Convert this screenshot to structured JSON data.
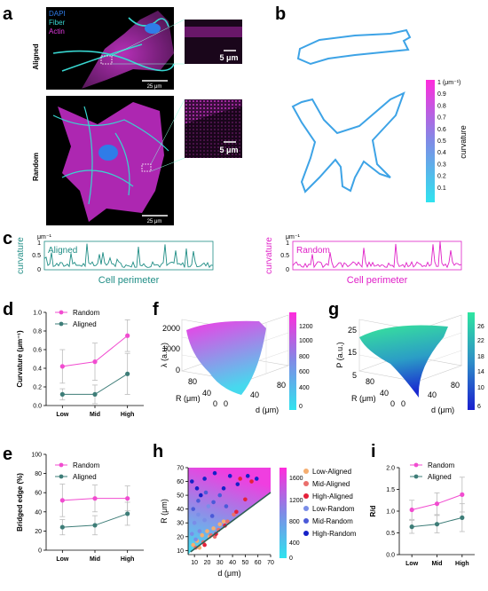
{
  "panels": {
    "a": "a",
    "b": "b",
    "c": "c",
    "d": "d",
    "e": "e",
    "f": "f",
    "g": "g",
    "h": "h",
    "i": "i"
  },
  "panel_a": {
    "row_aligned": "Aligned",
    "row_random": "Random",
    "legend": [
      "DAPI",
      "Fiber",
      "Actin"
    ],
    "legend_colors": [
      "#2f7ce8",
      "#38d6d0",
      "#e23be0"
    ],
    "scale_main_top": "25 μm",
    "scale_inset_top": "5 μm",
    "scale_main_bottom": "25 μm",
    "scale_inset_bottom": "5 μm"
  },
  "panel_b": {
    "colorbar_label": "curvature",
    "colorbar_ticks": [
      "1 (μm⁻¹)",
      "0.9",
      "0.8",
      "0.7",
      "0.6",
      "0.5",
      "0.4",
      "0.3",
      "0.2",
      "0.1"
    ]
  },
  "panel_c": {
    "ylabel": "curvature",
    "unit": "μm⁻¹",
    "yticks": [
      "0",
      "0.5",
      "1"
    ],
    "xlabel": "Cell perimeter",
    "left_title": "Aligned",
    "right_title": "Random",
    "left_color": "#1f8d85",
    "right_color": "#e020c8"
  },
  "panel_f": {
    "zlabel": "λ (a.u.)",
    "xlabel": "d (μm)",
    "ylabel": "R (μm)",
    "zticks": [
      "2000",
      "1000",
      "0"
    ],
    "rticks": [
      "80",
      "40",
      "0"
    ],
    "dticks": [
      "0",
      "40",
      "80"
    ],
    "cbar_ticks": [
      "1200",
      "1000",
      "800",
      "600",
      "400",
      "0"
    ]
  },
  "panel_g": {
    "zlabel": "P (a.u.)",
    "xlabel": "d (μm)",
    "ylabel": "R (μm)",
    "zticks": [
      "25",
      "15",
      "5"
    ],
    "rticks": [
      "80",
      "40",
      "0"
    ],
    "dticks": [
      "0",
      "40",
      "80"
    ],
    "cbar_ticks": [
      "26",
      "22",
      "18",
      "14",
      "10",
      "6"
    ]
  },
  "chart_data": [
    {
      "panel": "d",
      "type": "line",
      "categories": [
        "Low",
        "Mid",
        "High"
      ],
      "ylabel": "Curvature (μm⁻¹)",
      "ylim": [
        0,
        1.0
      ],
      "yticks": [
        "0.0",
        "0.2",
        "0.4",
        "0.6",
        "0.8",
        "1.0"
      ],
      "series": [
        {
          "name": "Random",
          "color": "#f14cd0",
          "values": [
            0.42,
            0.47,
            0.75
          ],
          "err": [
            0.18,
            0.2,
            0.17
          ]
        },
        {
          "name": "Aligned",
          "color": "#3e7d78",
          "values": [
            0.12,
            0.12,
            0.34
          ],
          "err": [
            0.06,
            0.1,
            0.22
          ]
        }
      ]
    },
    {
      "panel": "e",
      "type": "line",
      "categories": [
        "Low",
        "Mid",
        "High"
      ],
      "ylabel": "Bridged edge (%)",
      "ylim": [
        0,
        100
      ],
      "yticks": [
        "0",
        "20",
        "40",
        "60",
        "80",
        "100"
      ],
      "series": [
        {
          "name": "Random",
          "color": "#f14cd0",
          "values": [
            52,
            54,
            54
          ],
          "err": [
            17,
            14,
            13
          ]
        },
        {
          "name": "Aligned",
          "color": "#3e7d78",
          "values": [
            24,
            26,
            38
          ],
          "err": [
            8,
            10,
            12
          ]
        }
      ]
    },
    {
      "panel": "h",
      "type": "scatter",
      "xlabel": "d (μm)",
      "ylabel": "R (μm)",
      "xlim": [
        5,
        70
      ],
      "ylim": [
        7,
        70
      ],
      "xticks": [
        "10",
        "20",
        "30",
        "40",
        "50",
        "60",
        "70"
      ],
      "yticks": [
        "10",
        "20",
        "30",
        "40",
        "50",
        "60",
        "70"
      ],
      "cbar_ticks": [
        "1600",
        "1200",
        "800",
        "400",
        "0"
      ],
      "series": [
        {
          "name": "Low-Aligned",
          "color": "#f5ae70",
          "points": [
            [
              9,
              14
            ],
            [
              12,
              17
            ],
            [
              16,
              21
            ],
            [
              20,
              24
            ],
            [
              25,
              26
            ],
            [
              30,
              29
            ],
            [
              14,
              12
            ],
            [
              22,
              20
            ],
            [
              33,
              31
            ]
          ]
        },
        {
          "name": "Mid-Aligned",
          "color": "#ea6f6c",
          "points": [
            [
              11,
              12
            ],
            [
              17,
              16
            ],
            [
              23,
              21
            ],
            [
              29,
              25
            ],
            [
              36,
              31
            ],
            [
              41,
              36
            ],
            [
              26,
              20
            ]
          ]
        },
        {
          "name": "High-Aligned",
          "color": "#e52039",
          "points": [
            [
              18,
              14
            ],
            [
              27,
              22
            ],
            [
              34,
              28
            ],
            [
              43,
              38
            ],
            [
              50,
              47
            ],
            [
              55,
              60
            ],
            [
              46,
              62
            ]
          ]
        },
        {
          "name": "Low-Random",
          "color": "#7a8de8",
          "points": [
            [
              8,
              22
            ],
            [
              10,
              30
            ],
            [
              13,
              36
            ],
            [
              14,
              24
            ],
            [
              18,
              32
            ],
            [
              21,
              42
            ],
            [
              11,
              18
            ]
          ]
        },
        {
          "name": "Mid-Random",
          "color": "#4b5ad8",
          "points": [
            [
              9,
              40
            ],
            [
              13,
              46
            ],
            [
              19,
              52
            ],
            [
              25,
              45
            ],
            [
              30,
              50
            ],
            [
              35,
              42
            ],
            [
              24,
              35
            ]
          ]
        },
        {
          "name": "High-Random",
          "color": "#1521c8",
          "points": [
            [
              8,
              60
            ],
            [
              12,
              55
            ],
            [
              18,
              62
            ],
            [
              26,
              66
            ],
            [
              38,
              64
            ],
            [
              44,
              58
            ],
            [
              52,
              64
            ],
            [
              59,
              62
            ],
            [
              15,
              50
            ],
            [
              33,
              55
            ]
          ]
        }
      ],
      "fit_line": [
        [
          7,
          9
        ],
        [
          70,
          52
        ]
      ]
    },
    {
      "panel": "i",
      "type": "line",
      "categories": [
        "Low",
        "Mid",
        "High"
      ],
      "ylabel": "R/d",
      "ylim": [
        0.0,
        2.0
      ],
      "yticks": [
        "0.0",
        "0.5",
        "1.0",
        "1.5",
        "2.0"
      ],
      "series": [
        {
          "name": "Random",
          "color": "#f14cd0",
          "values": [
            1.03,
            1.17,
            1.38
          ],
          "err": [
            0.22,
            0.25,
            0.4
          ]
        },
        {
          "name": "Aligned",
          "color": "#3e7d78",
          "values": [
            0.64,
            0.7,
            0.85
          ],
          "err": [
            0.15,
            0.2,
            0.32
          ]
        }
      ]
    }
  ]
}
